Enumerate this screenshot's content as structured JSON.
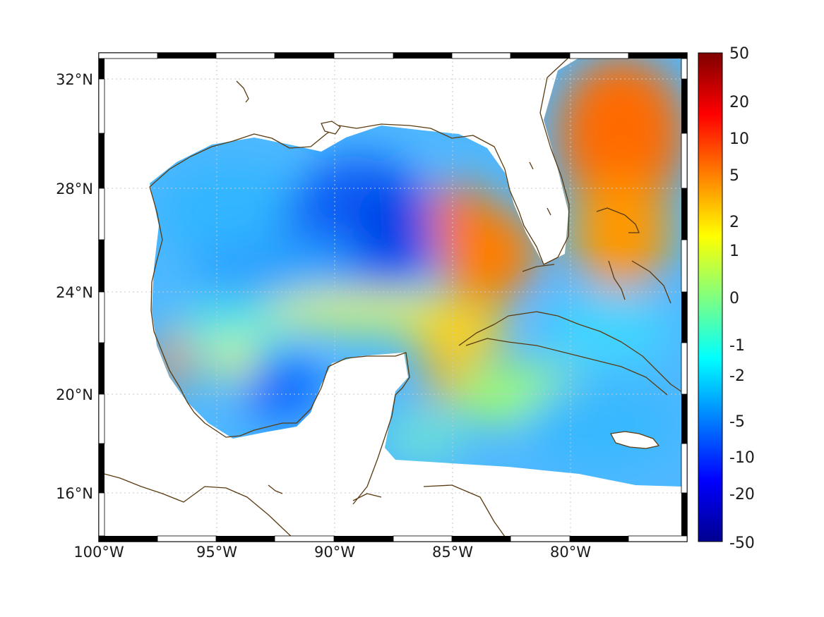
{
  "map": {
    "lon_ticks": [
      "100°W",
      "95°W",
      "90°W",
      "85°W",
      "80°W"
    ],
    "lat_ticks": [
      "32°N",
      "28°N",
      "24°N",
      "20°N",
      "16°N"
    ]
  },
  "colorbar": {
    "tick_labels": [
      "50",
      "20",
      "10",
      "5",
      "2",
      "1",
      "0",
      "-1",
      "-2",
      "-5",
      "-10",
      "-20",
      "-50"
    ],
    "colors": [
      "#7f0000",
      "#ff0000",
      "#ff8000",
      "#ffff00",
      "#80ff80",
      "#00ffff",
      "#0080ff",
      "#0000ff",
      "#00008f"
    ]
  },
  "colors": {
    "coastline": "#5a3a10",
    "frame_dark": "#000000",
    "frame_light": "#ffffff"
  }
}
